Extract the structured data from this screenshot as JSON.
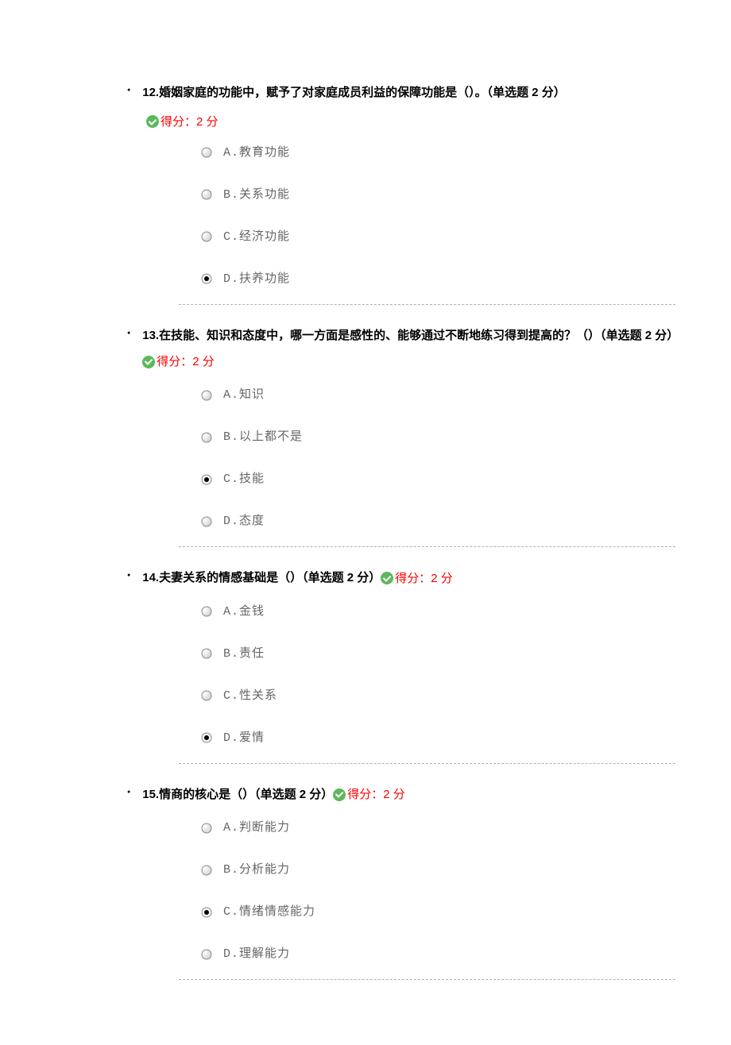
{
  "score_label": "得分：2 分",
  "questions": [
    {
      "number": "12.",
      "text": "婚姻家庭的功能中，赋予了对家庭成员利益的保障功能是（）。（单选题 2 分）",
      "score_inline": false,
      "options": [
        {
          "label": "A.教育功能",
          "selected": false
        },
        {
          "label": "B.关系功能",
          "selected": false
        },
        {
          "label": "C.经济功能",
          "selected": false
        },
        {
          "label": "D.扶养功能",
          "selected": true
        }
      ]
    },
    {
      "number": "13.",
      "text": "在技能、知识和态度中，哪一方面是感性的、能够通过不断地练习得到提高的？（）（单选题 2 分）",
      "score_inline": true,
      "options": [
        {
          "label": "A.知识",
          "selected": false
        },
        {
          "label": "B.以上都不是",
          "selected": false
        },
        {
          "label": "C.技能",
          "selected": true
        },
        {
          "label": "D.态度",
          "selected": false
        }
      ]
    },
    {
      "number": "14.",
      "text": "夫妻关系的情感基础是（）（单选题 2 分）",
      "score_inline": true,
      "options": [
        {
          "label": "A.金钱",
          "selected": false
        },
        {
          "label": "B.责任",
          "selected": false
        },
        {
          "label": "C.性关系",
          "selected": false
        },
        {
          "label": "D.爱情",
          "selected": true
        }
      ]
    },
    {
      "number": "15.",
      "text": "情商的核心是（）（单选题 2 分）",
      "score_inline": true,
      "options": [
        {
          "label": "A.判断能力",
          "selected": false
        },
        {
          "label": "B.分析能力",
          "selected": false
        },
        {
          "label": "C.情绪情感能力",
          "selected": true
        },
        {
          "label": "D.理解能力",
          "selected": false
        }
      ]
    }
  ]
}
